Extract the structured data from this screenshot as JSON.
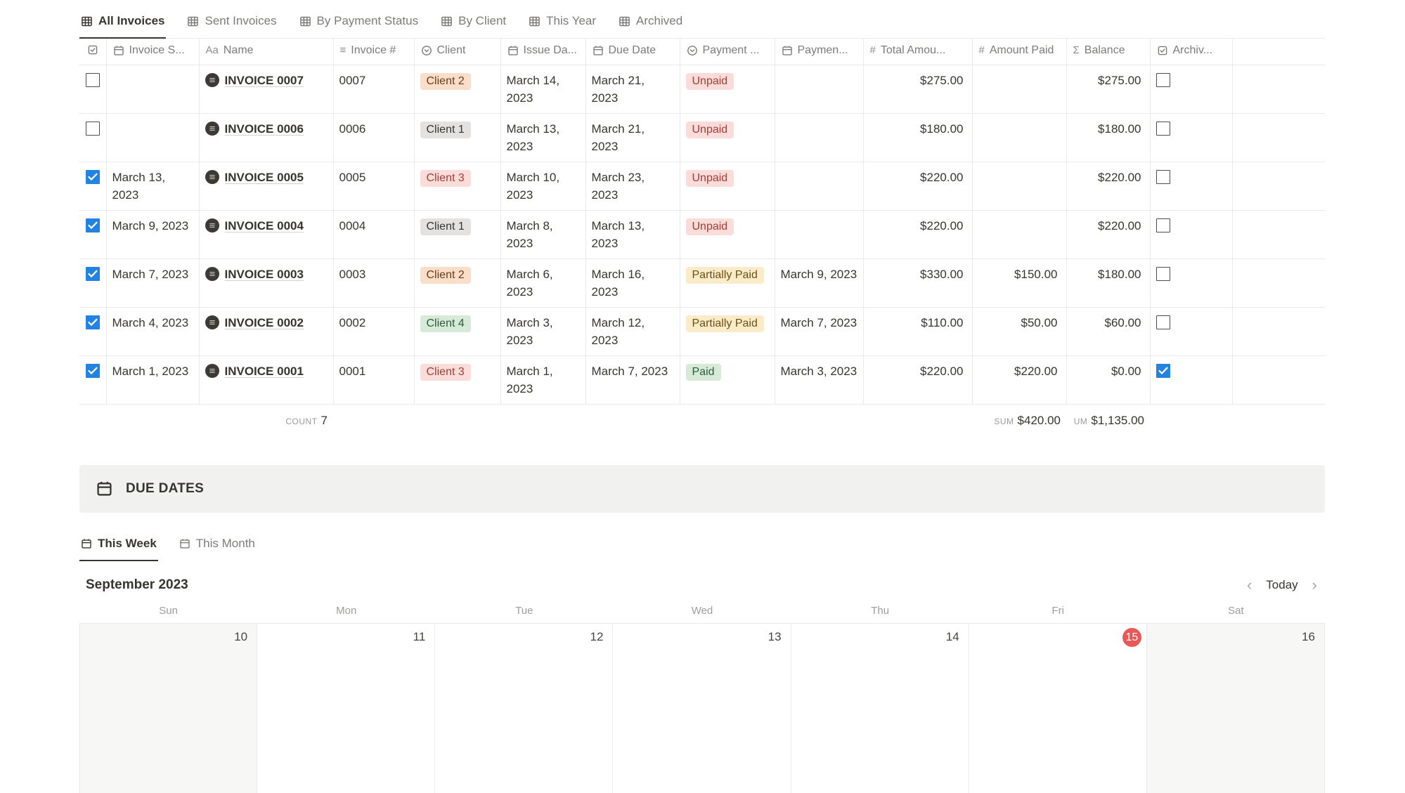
{
  "colors": {
    "accent_blue": "#2383e2",
    "today_red": "#eb5757"
  },
  "view_tabs": [
    {
      "label": "All Invoices",
      "active": true
    },
    {
      "label": "Sent Invoices",
      "active": false
    },
    {
      "label": "By Payment Status",
      "active": false
    },
    {
      "label": "By Client",
      "active": false
    },
    {
      "label": "This Year",
      "active": false
    },
    {
      "label": "Archived",
      "active": false
    }
  ],
  "table": {
    "columns": [
      {
        "key": "sel",
        "label": "",
        "icon": "checkbox"
      },
      {
        "key": "sent",
        "label": "Invoice S...",
        "icon": "calendar"
      },
      {
        "key": "name",
        "label": "Name",
        "icon": "aa"
      },
      {
        "key": "num",
        "label": "Invoice #",
        "icon": "text"
      },
      {
        "key": "client",
        "label": "Client",
        "icon": "select"
      },
      {
        "key": "issue",
        "label": "Issue Da...",
        "icon": "calendar"
      },
      {
        "key": "due",
        "label": "Due Date",
        "icon": "calendar"
      },
      {
        "key": "status",
        "label": "Payment ...",
        "icon": "select"
      },
      {
        "key": "paydate",
        "label": "Paymen...",
        "icon": "calendar"
      },
      {
        "key": "total",
        "label": "Total Amou...",
        "icon": "hash"
      },
      {
        "key": "paid",
        "label": "Amount Paid",
        "icon": "hash"
      },
      {
        "key": "balance",
        "label": "Balance",
        "icon": "sigma"
      },
      {
        "key": "archived",
        "label": "Archiv...",
        "icon": "checkbox"
      },
      {
        "key": "extra",
        "label": "",
        "icon": ""
      }
    ],
    "rows": [
      {
        "selected": false,
        "sent": "",
        "name": "INVOICE 0007",
        "num": "0007",
        "client": "Client 2",
        "client_color": "orange",
        "issue": "March 14, 2023",
        "due": "March 21, 2023",
        "status": "Unpaid",
        "status_color": "red",
        "paydate": "",
        "total": "$275.00",
        "paid": "",
        "balance": "$275.00",
        "archived": false
      },
      {
        "selected": false,
        "sent": "",
        "name": "INVOICE 0006",
        "num": "0006",
        "client": "Client 1",
        "client_color": "gray",
        "issue": "March 13, 2023",
        "due": "March 21, 2023",
        "status": "Unpaid",
        "status_color": "red",
        "paydate": "",
        "total": "$180.00",
        "paid": "",
        "balance": "$180.00",
        "archived": false
      },
      {
        "selected": true,
        "sent": "March 13, 2023",
        "name": "INVOICE 0005",
        "num": "0005",
        "client": "Client 3",
        "client_color": "red",
        "issue": "March 10, 2023",
        "due": "March 23, 2023",
        "status": "Unpaid",
        "status_color": "red",
        "paydate": "",
        "total": "$220.00",
        "paid": "",
        "balance": "$220.00",
        "archived": false
      },
      {
        "selected": true,
        "sent": "March 9, 2023",
        "name": "INVOICE 0004",
        "num": "0004",
        "client": "Client 1",
        "client_color": "gray",
        "issue": "March 8, 2023",
        "due": "March 13, 2023",
        "status": "Unpaid",
        "status_color": "red",
        "paydate": "",
        "total": "$220.00",
        "paid": "",
        "balance": "$220.00",
        "archived": false
      },
      {
        "selected": true,
        "sent": "March 7, 2023",
        "name": "INVOICE 0003",
        "num": "0003",
        "client": "Client 2",
        "client_color": "orange",
        "issue": "March 6, 2023",
        "due": "March 16, 2023",
        "status": "Partially Paid",
        "status_color": "yellow",
        "paydate": "March 9, 2023",
        "total": "$330.00",
        "paid": "$150.00",
        "balance": "$180.00",
        "archived": false
      },
      {
        "selected": true,
        "sent": "March 4, 2023",
        "name": "INVOICE 0002",
        "num": "0002",
        "client": "Client 4",
        "client_color": "green",
        "issue": "March 3, 2023",
        "due": "March 12, 2023",
        "status": "Partially Paid",
        "status_color": "yellow",
        "paydate": "March 7, 2023",
        "total": "$110.00",
        "paid": "$50.00",
        "balance": "$60.00",
        "archived": false
      },
      {
        "selected": true,
        "sent": "March 1, 2023",
        "name": "INVOICE 0001",
        "num": "0001",
        "client": "Client 3",
        "client_color": "red",
        "issue": "March 1, 2023",
        "due": "March 7, 2023",
        "status": "Paid",
        "status_color": "green",
        "paydate": "March 3, 2023",
        "total": "$220.00",
        "paid": "$220.00",
        "balance": "$0.00",
        "archived": true
      }
    ],
    "footer": {
      "count_label": "COUNT",
      "count_value": "7",
      "sum_label": "SUM",
      "sum_value": "$420.00",
      "sum2_label": "UM",
      "sum2_value": "$1,135.00"
    }
  },
  "due_dates": {
    "title": "DUE DATES",
    "tabs": [
      {
        "label": "This Week",
        "active": true
      },
      {
        "label": "This Month",
        "active": false
      }
    ],
    "calendar": {
      "month_label": "September 2023",
      "today_label": "Today",
      "prev_glyph": "‹",
      "next_glyph": "›",
      "weekdays": [
        "Sun",
        "Mon",
        "Tue",
        "Wed",
        "Thu",
        "Fri",
        "Sat"
      ],
      "days": [
        {
          "n": "10",
          "weekend": true,
          "today": false
        },
        {
          "n": "11",
          "weekend": false,
          "today": false
        },
        {
          "n": "12",
          "weekend": false,
          "today": false
        },
        {
          "n": "13",
          "weekend": false,
          "today": false
        },
        {
          "n": "14",
          "weekend": false,
          "today": false
        },
        {
          "n": "15",
          "weekend": false,
          "today": true
        },
        {
          "n": "16",
          "weekend": true,
          "today": false
        }
      ]
    }
  }
}
